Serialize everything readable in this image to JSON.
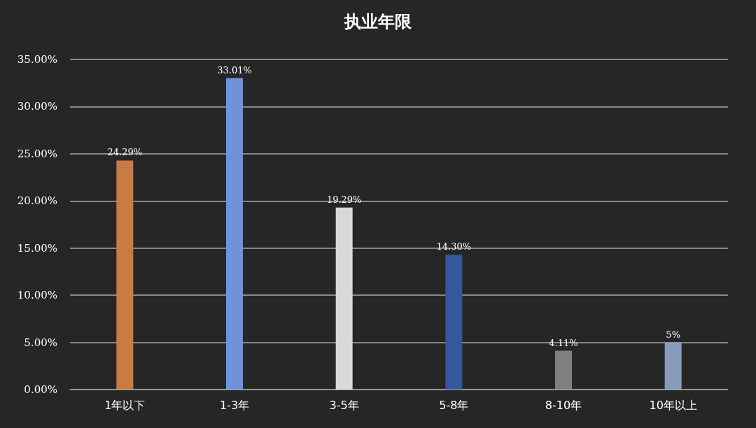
{
  "chart_data": {
    "type": "bar",
    "title": "执业年限",
    "categories": [
      "1年以下",
      "1-3年",
      "3-5年",
      "5-8年",
      "8-10年",
      "10年以上"
    ],
    "values": [
      24.29,
      33.01,
      19.29,
      14.3,
      4.11,
      5
    ],
    "colors": [
      "#c97b45",
      "#7092d8",
      "#d9d9d9",
      "#34589c",
      "#7f7f7f",
      "#8a9bba"
    ],
    "value_labels": [
      "24.29%",
      "33.01%",
      "19.29%",
      "14.30%",
      "4.11%",
      "5%"
    ],
    "ylim": [
      0,
      35
    ],
    "yticks": [
      {
        "value": 0,
        "label": "0.00%"
      },
      {
        "value": 5,
        "label": "5.00%"
      },
      {
        "value": 10,
        "label": "10.00%"
      },
      {
        "value": 15,
        "label": "15.00%"
      },
      {
        "value": 20,
        "label": "20.00%"
      },
      {
        "value": 25,
        "label": "25.00%"
      },
      {
        "value": 30,
        "label": "30.00%"
      },
      {
        "value": 35,
        "label": "35.00%"
      }
    ],
    "grid": true
  }
}
